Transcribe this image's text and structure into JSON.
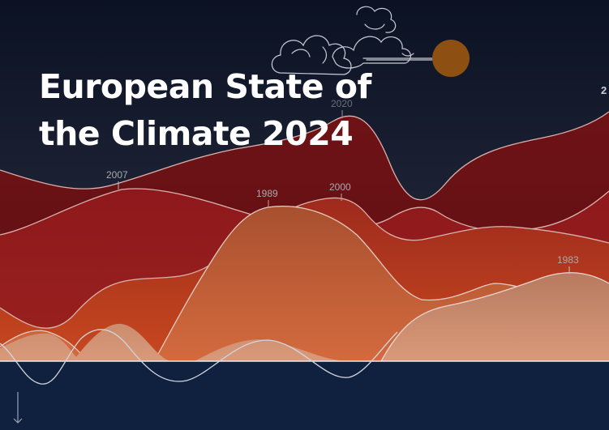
{
  "title": "European State of the Climate 2024",
  "year_labels": {
    "peak_2020": "2020",
    "peak_2007": "2007",
    "peak_1989": "1989",
    "peak_2000": "2000",
    "peak_1983": "1983"
  },
  "edge_label": "2",
  "icons": {
    "cloud": "cloud-icon",
    "sun": "sun-icon",
    "scroll": "arrow-down-icon"
  },
  "colors": {
    "sky_top": "#0b1224",
    "sky_bottom": "#4a5064",
    "sea": "#10203f",
    "sun": "#8e4f12",
    "layer_dark": "#6c1216",
    "layer_mid": "#8f1a1c",
    "layer_orange": "#b23a1e",
    "layer_light": "#c25a3a",
    "layer_pale": "#c98d70"
  }
}
